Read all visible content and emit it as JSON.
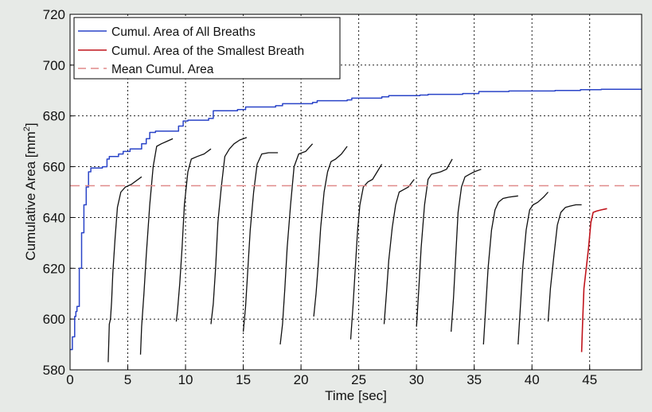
{
  "chart_data": {
    "type": "line",
    "xlabel": "Time [sec]",
    "ylabel_main": "Cumulative Area [mm",
    "ylabel_sup": "2",
    "ylabel_close": "]",
    "xlim": [
      0,
      49.5
    ],
    "ylim": [
      580,
      720
    ],
    "xticks": [
      0,
      5,
      10,
      15,
      20,
      25,
      30,
      35,
      40,
      45
    ],
    "yticks": [
      580,
      600,
      620,
      640,
      660,
      680,
      700,
      720
    ],
    "grid": true,
    "legend_position": "top-left",
    "colors": {
      "all": "#2a44c8",
      "smallest": "#c0141c",
      "mean": "#e08a8a",
      "breath": "#111111",
      "background": "#e7eae7",
      "plot_bg": "#ffffff"
    },
    "series": [
      {
        "name": "Cumul. Area of All Breaths",
        "role": "all",
        "x": [
          0,
          0.2,
          0.4,
          0.5,
          0.6,
          0.8,
          1.0,
          1.2,
          1.4,
          1.6,
          1.8,
          2.0,
          2.8,
          3.2,
          3.4,
          4.2,
          4.6,
          5.2,
          6.2,
          6.6,
          6.9,
          7.4,
          9.4,
          9.8,
          10.2,
          12.0,
          12.4,
          14.5,
          15.2,
          17.8,
          18.4,
          21.0,
          21.4,
          24.0,
          24.4,
          27.0,
          27.6,
          30.3,
          31.0,
          34.0,
          35.4,
          38.0,
          42.0,
          44.2,
          46.0,
          49.5
        ],
        "y": [
          588,
          593,
          601,
          603,
          605,
          620,
          634,
          645,
          652,
          658,
          659.5,
          659.5,
          660,
          663,
          664,
          665,
          666,
          667,
          669,
          671,
          673.5,
          674,
          676,
          678,
          678.3,
          679,
          682,
          682.5,
          683.5,
          684,
          684.8,
          685.3,
          686,
          686.3,
          687,
          687.5,
          688,
          688.2,
          688.5,
          688.8,
          689.6,
          689.8,
          690,
          690.3,
          690.5,
          690.5
        ]
      },
      {
        "name": "",
        "role": "breath",
        "x": [
          3.3,
          3.4,
          3.5,
          3.6,
          3.7,
          3.9,
          4.1,
          4.4,
          4.8,
          5.3,
          6.2
        ],
        "y": [
          583,
          598,
          600,
          607,
          618,
          632,
          644,
          650,
          652,
          653,
          656
        ]
      },
      {
        "name": "",
        "role": "breath",
        "x": [
          6.1,
          6.2,
          6.4,
          6.6,
          6.9,
          7.2,
          7.5,
          7.9,
          8.4,
          8.9
        ],
        "y": [
          586,
          597,
          610,
          625,
          645,
          660,
          668,
          669,
          670,
          671
        ]
      },
      {
        "name": "",
        "role": "breath",
        "x": [
          9.2,
          9.3,
          9.5,
          9.7,
          9.9,
          10.2,
          10.5,
          11.0,
          11.6,
          12.2
        ],
        "y": [
          599,
          603,
          614,
          628,
          645,
          658,
          663,
          664,
          665,
          667
        ]
      },
      {
        "name": "",
        "role": "breath",
        "x": [
          12.2,
          12.4,
          12.6,
          12.8,
          13.1,
          13.4,
          13.8,
          14.2,
          14.7,
          15.3
        ],
        "y": [
          598,
          606,
          620,
          638,
          652,
          664,
          667,
          669,
          670.5,
          671.5
        ]
      },
      {
        "name": "",
        "role": "breath",
        "x": [
          15.0,
          15.2,
          15.4,
          15.6,
          15.9,
          16.2,
          16.6,
          17.2,
          18.0
        ],
        "y": [
          595,
          605,
          620,
          635,
          650,
          661,
          665,
          665.5,
          665.5
        ]
      },
      {
        "name": "",
        "role": "breath",
        "x": [
          18.2,
          18.4,
          18.6,
          18.8,
          19.1,
          19.4,
          19.8,
          20.4,
          21.0
        ],
        "y": [
          590,
          598,
          612,
          628,
          645,
          660,
          665,
          666,
          669
        ]
      },
      {
        "name": "",
        "role": "breath",
        "x": [
          21.1,
          21.3,
          21.5,
          21.7,
          22.0,
          22.3,
          22.6,
          23.0,
          23.5,
          24.0
        ],
        "y": [
          601,
          610,
          622,
          636,
          650,
          658,
          662,
          663,
          665,
          668
        ]
      },
      {
        "name": "",
        "role": "breath",
        "x": [
          24.3,
          24.5,
          24.7,
          24.9,
          25.1,
          25.4,
          25.8,
          26.2,
          26.6,
          27.0
        ],
        "y": [
          592,
          605,
          620,
          635,
          645,
          652,
          654,
          655,
          658,
          661
        ]
      },
      {
        "name": "",
        "role": "breath",
        "x": [
          27.2,
          27.4,
          27.6,
          27.9,
          28.2,
          28.5,
          28.9,
          29.3,
          29.8
        ],
        "y": [
          598,
          610,
          623,
          636,
          645,
          650,
          651,
          652,
          655
        ]
      },
      {
        "name": "",
        "role": "breath",
        "x": [
          30.0,
          30.2,
          30.4,
          30.7,
          31.0,
          31.3,
          31.7,
          32.1,
          32.6,
          33.1
        ],
        "y": [
          597,
          612,
          628,
          645,
          655,
          657,
          657.5,
          658,
          659,
          663
        ]
      },
      {
        "name": "",
        "role": "breath",
        "x": [
          33.0,
          33.2,
          33.4,
          33.6,
          33.9,
          34.2,
          34.6,
          35.0,
          35.6
        ],
        "y": [
          595,
          608,
          625,
          642,
          652,
          656,
          657,
          658,
          659
        ]
      },
      {
        "name": "",
        "role": "breath",
        "x": [
          35.8,
          36.0,
          36.2,
          36.5,
          36.8,
          37.1,
          37.5,
          38.0,
          38.8
        ],
        "y": [
          590,
          605,
          620,
          635,
          643,
          646,
          647.5,
          648,
          648.5
        ]
      },
      {
        "name": "",
        "role": "breath",
        "x": [
          38.8,
          39.0,
          39.2,
          39.5,
          39.8,
          40.1,
          40.5,
          41.0,
          41.4
        ],
        "y": [
          590,
          605,
          620,
          635,
          643,
          645,
          646,
          648,
          650
        ]
      },
      {
        "name": "",
        "role": "breath",
        "x": [
          41.4,
          41.6,
          41.9,
          42.2,
          42.5,
          42.9,
          43.3,
          43.8,
          44.3
        ],
        "y": [
          599,
          612,
          625,
          637,
          642,
          644,
          644.5,
          645,
          645
        ]
      },
      {
        "name": "Cumul. Area of the Smallest Breath",
        "role": "smallest",
        "x": [
          44.3,
          44.4,
          44.5,
          44.7,
          44.9,
          45.1,
          45.3,
          45.6,
          46.0,
          46.5
        ],
        "y": [
          587,
          600,
          612,
          620,
          628,
          638,
          642,
          642.5,
          643,
          643.5
        ]
      },
      {
        "name": "Mean Cumul. Area",
        "role": "mean",
        "x": [
          0,
          49.5
        ],
        "y": [
          652.5,
          652.5
        ]
      }
    ]
  }
}
